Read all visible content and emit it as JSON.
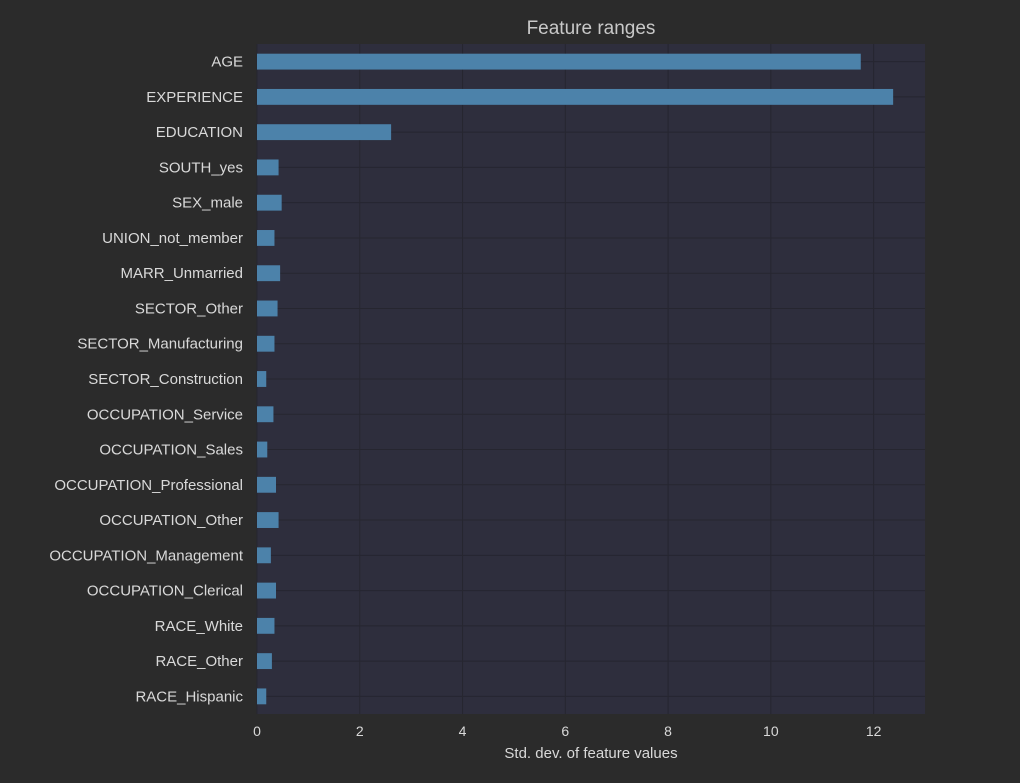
{
  "colors": {
    "page_background": "#2b2b2b",
    "plot_background": "#2e2e3d",
    "bar": "#4c82aa",
    "grid": "#262630",
    "text": "#d9d9d9",
    "title": "#c8c8c8"
  },
  "chart_data": {
    "type": "bar",
    "orientation": "horizontal",
    "title": "Feature ranges",
    "xlabel": "Std. dev. of feature values",
    "ylabel": "",
    "xlim": [
      0,
      13
    ],
    "x_ticks": [
      0,
      2,
      4,
      6,
      8,
      10,
      12
    ],
    "grid": true,
    "categories": [
      "AGE",
      "EXPERIENCE",
      "EDUCATION",
      "SOUTH_yes",
      "SEX_male",
      "UNION_not_member",
      "MARR_Unmarried",
      "SECTOR_Other",
      "SECTOR_Manufacturing",
      "SECTOR_Construction",
      "OCCUPATION_Service",
      "OCCUPATION_Sales",
      "OCCUPATION_Professional",
      "OCCUPATION_Other",
      "OCCUPATION_Management",
      "OCCUPATION_Clerical",
      "RACE_White",
      "RACE_Other",
      "RACE_Hispanic"
    ],
    "values": [
      11.75,
      12.38,
      2.61,
      0.42,
      0.48,
      0.34,
      0.45,
      0.4,
      0.34,
      0.18,
      0.32,
      0.2,
      0.37,
      0.42,
      0.27,
      0.37,
      0.34,
      0.29,
      0.18
    ]
  }
}
